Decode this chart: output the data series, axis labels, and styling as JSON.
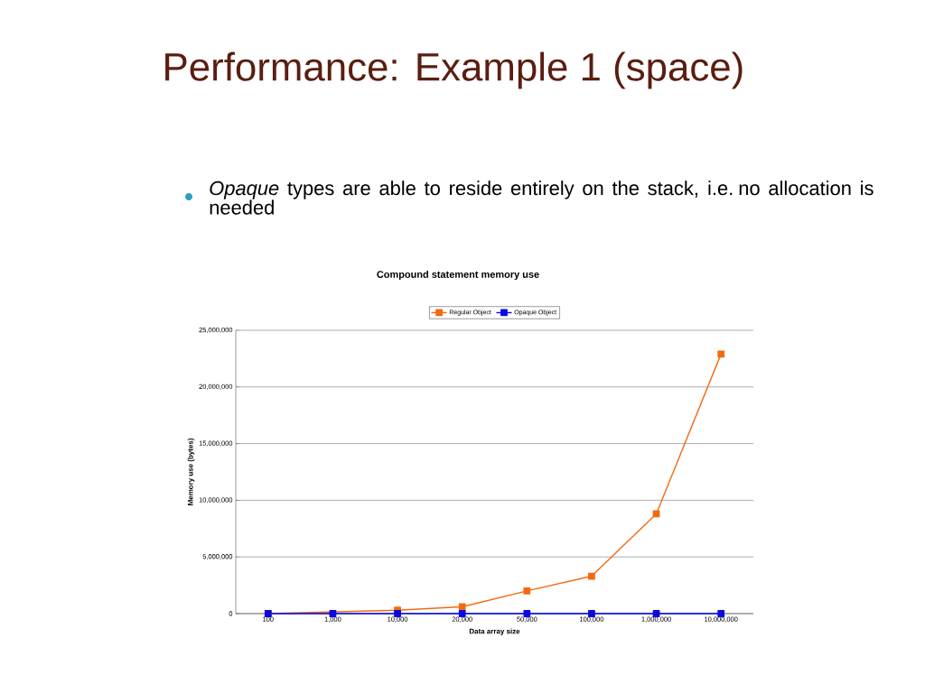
{
  "chart_data": {
    "type": "line",
    "title": "Compound statement memory use",
    "xlabel": "Data array size",
    "ylabel": "Memory use (bytes)",
    "annotations": [
      "Performance: Example 1 (space)",
      "*Opaque* types are able to reside entirely on the stack, i.e. no allocation is needed"
    ],
    "categories": [
      "100",
      "1,000",
      "10,000",
      "20,000",
      "50,000",
      "100,000",
      "1,000,000",
      "10,000,000"
    ],
    "series": [
      {
        "name": "Regular Object",
        "color": "#f26a10",
        "values": [
          0,
          null,
          300000,
          600000,
          2000000,
          3300000,
          8800000,
          22900000
        ]
      },
      {
        "name": "Opaque Object",
        "color": "#0a0ae0",
        "values": [
          0,
          0,
          0,
          0,
          0,
          0,
          0,
          0
        ]
      }
    ],
    "ylim": [
      0,
      25000000
    ],
    "yticks": [
      {
        "value": 0,
        "label": "0"
      },
      {
        "value": 5000000,
        "label": "5,000,000"
      },
      {
        "value": 10000000,
        "label": "10,000,000"
      },
      {
        "value": 15000000,
        "label": "15,000,000"
      },
      {
        "value": 20000000,
        "label": "20,000,000"
      },
      {
        "value": 25000000,
        "label": "25,000,000"
      }
    ],
    "grid": "y",
    "legend": "top",
    "marker": "square",
    "line_style": "solid"
  }
}
